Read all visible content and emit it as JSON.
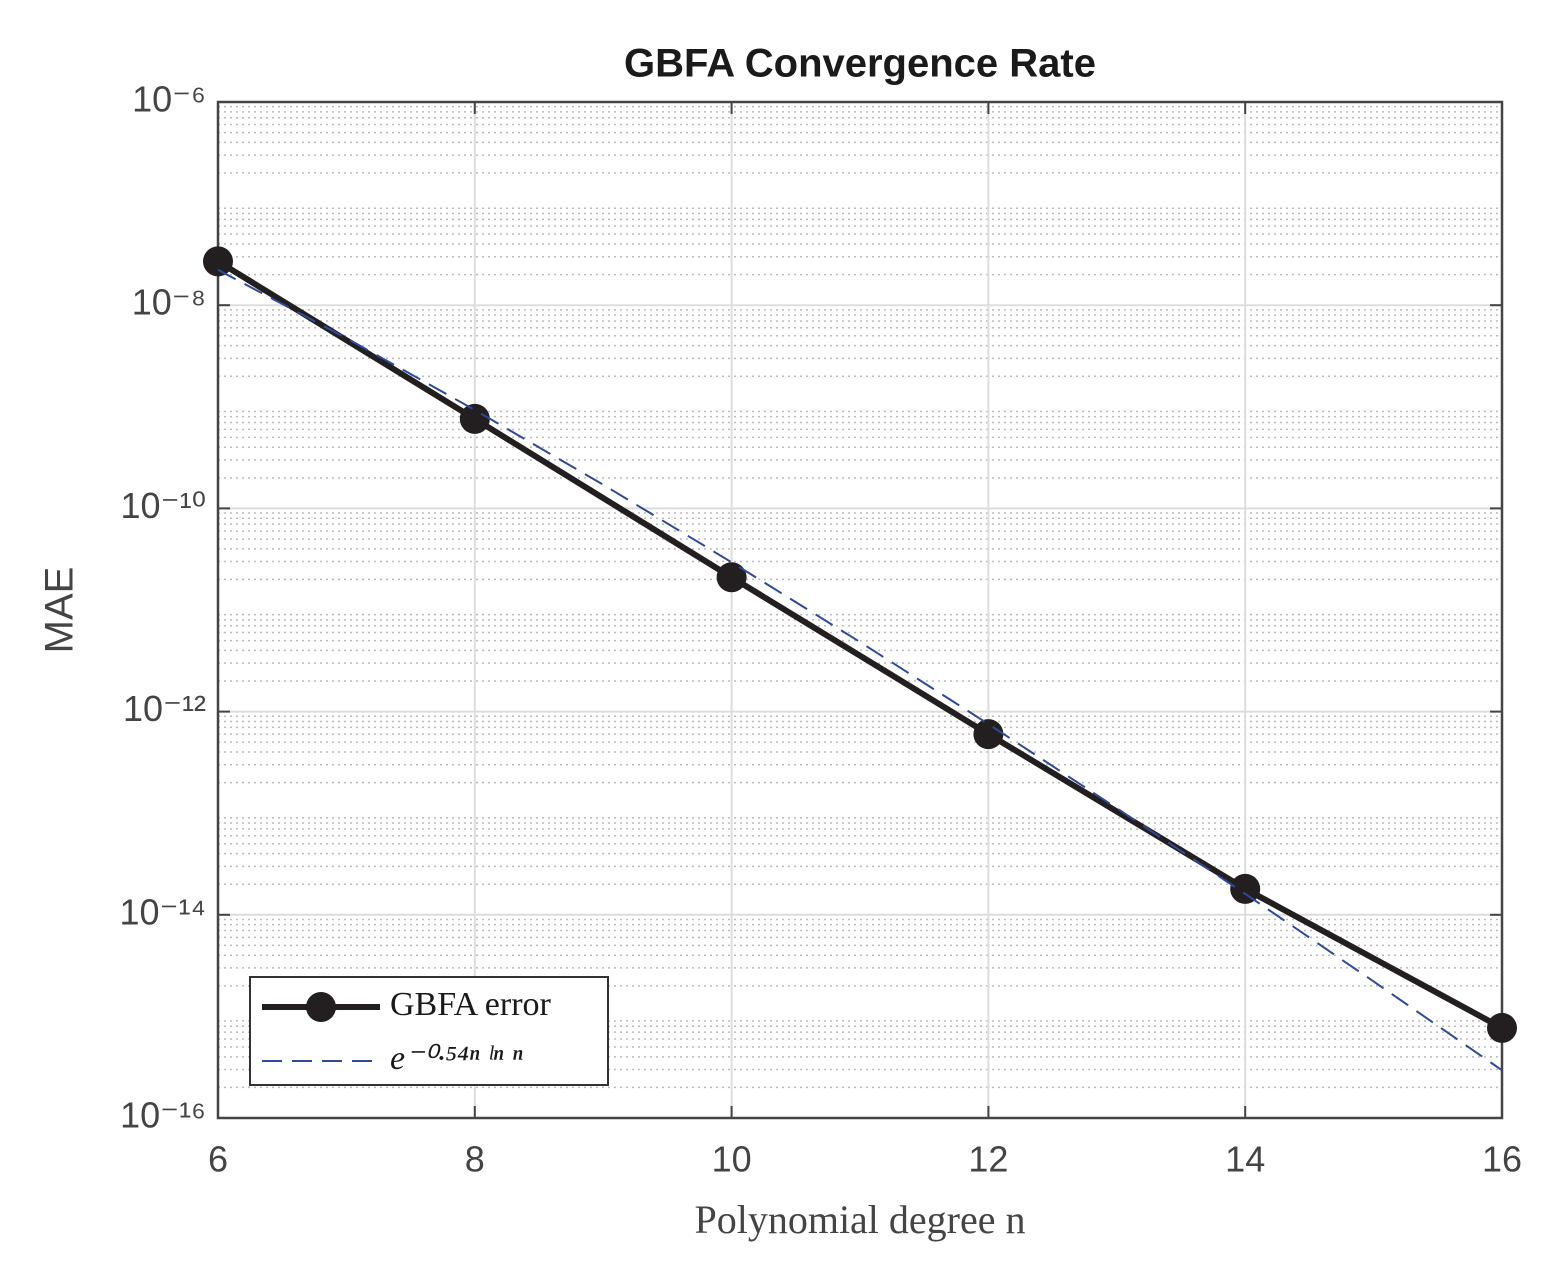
{
  "chart_data": {
    "type": "line",
    "title": "GBFA Convergence Rate",
    "x_label": "Polynomial degree n",
    "y_label": "MAE",
    "log_y": true,
    "grid": true,
    "minor_grid": true,
    "legend_position": "lower left",
    "xlim": [
      6,
      16
    ],
    "xticks": [
      6,
      8,
      10,
      12,
      14,
      16
    ],
    "ylim": [
      1e-16,
      1e-06
    ],
    "yticks": [
      {
        "value": 1e-16,
        "label": "10⁻¹⁶"
      },
      {
        "value": 1e-14,
        "label": "10⁻¹⁴"
      },
      {
        "value": 1e-12,
        "label": "10⁻¹²"
      },
      {
        "value": 1e-10,
        "label": "10⁻¹⁰"
      },
      {
        "value": 1e-08,
        "label": "10⁻⁸"
      },
      {
        "value": 1e-06,
        "label": "10⁻⁶"
      }
    ],
    "series": [
      {
        "name": "GBFA error",
        "color": "#231f20",
        "style": "solid-marker",
        "x": [
          6,
          8,
          10,
          12,
          14,
          16
        ],
        "values": [
          2.7e-08,
          7.6e-10,
          2.1e-11,
          6e-13,
          1.8e-14,
          7.7e-16
        ]
      },
      {
        "name": "e⁻⁰·⁵⁴ⁿ ˡⁿ ⁿ",
        "color": "#2e4a9a",
        "style": "dashed",
        "x": [
          6,
          7,
          8,
          9,
          10,
          11,
          12,
          13,
          14,
          15,
          16
        ],
        "values": [
          2.23e-08,
          4.74e-09,
          9.31e-10,
          1.71e-10,
          2.95e-11,
          4.84e-12,
          7.54e-13,
          1.12e-13,
          1.61e-14,
          2.21e-15,
          2.95e-16
        ]
      }
    ]
  }
}
